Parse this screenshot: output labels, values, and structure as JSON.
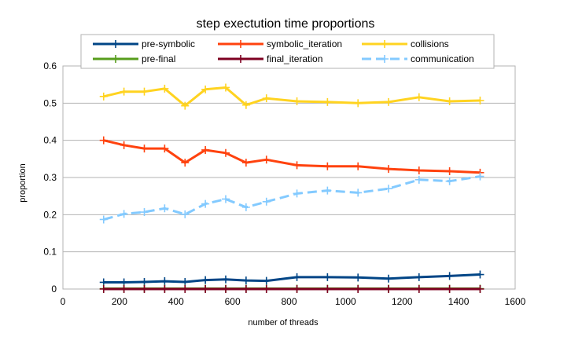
{
  "chart_data": {
    "type": "line",
    "title": "step exectution time proportions",
    "xlabel": "number of threads",
    "ylabel": "proportion",
    "xlim": [
      0,
      1600
    ],
    "ylim": [
      0,
      0.6
    ],
    "xticks": [
      0,
      200,
      400,
      600,
      800,
      1000,
      1200,
      1400,
      1600
    ],
    "yticks": [
      0,
      0.1,
      0.2,
      0.3,
      0.4,
      0.5,
      0.6
    ],
    "ytick_labels": [
      "0",
      "0.1",
      "0.2",
      "0.3",
      "0.4",
      "0.5",
      "0.6"
    ],
    "grid": "horizontal",
    "legend_position": "top",
    "x": [
      144,
      216,
      288,
      360,
      432,
      504,
      576,
      648,
      720,
      828,
      936,
      1044,
      1152,
      1260,
      1368,
      1476
    ],
    "series": [
      {
        "name": "pre-symbolic",
        "color": "#004586",
        "dashed": false,
        "values": [
          0.018,
          0.018,
          0.019,
          0.021,
          0.019,
          0.024,
          0.026,
          0.023,
          0.022,
          0.032,
          0.032,
          0.031,
          0.028,
          0.032,
          0.035,
          0.039
        ]
      },
      {
        "name": "symbolic_iteration",
        "color": "#ff420e",
        "dashed": false,
        "values": [
          0.4,
          0.387,
          0.378,
          0.378,
          0.34,
          0.374,
          0.366,
          0.34,
          0.348,
          0.333,
          0.33,
          0.33,
          0.323,
          0.319,
          0.317,
          0.313
        ]
      },
      {
        "name": "collisions",
        "color": "#ffd320",
        "dashed": false,
        "values": [
          0.518,
          0.531,
          0.531,
          0.539,
          0.493,
          0.537,
          0.542,
          0.495,
          0.513,
          0.505,
          0.503,
          0.5,
          0.503,
          0.516,
          0.505,
          0.507
        ]
      },
      {
        "name": "pre-final",
        "color": "#579d1c",
        "dashed": false,
        "values": [
          0.001,
          0.001,
          0.001,
          0.001,
          0.001,
          0.001,
          0.001,
          0.001,
          0.001,
          0.001,
          0.001,
          0.001,
          0.001,
          0.001,
          0.001,
          0.001
        ]
      },
      {
        "name": "final_iteration",
        "color": "#7e0021",
        "dashed": false,
        "values": [
          0.0,
          0.0,
          0.0,
          0.0,
          0.0,
          0.0,
          0.0,
          0.0,
          0.0,
          0.0,
          0.0,
          0.0,
          0.0,
          0.0,
          0.0,
          0.0
        ]
      },
      {
        "name": "communication",
        "color": "#83caff",
        "dashed": true,
        "values": [
          0.187,
          0.202,
          0.207,
          0.217,
          0.201,
          0.229,
          0.242,
          0.22,
          0.235,
          0.257,
          0.265,
          0.259,
          0.27,
          0.294,
          0.29,
          0.303
        ]
      }
    ]
  }
}
